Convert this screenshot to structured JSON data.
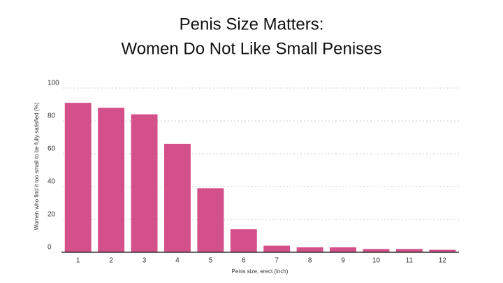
{
  "chart_data": {
    "type": "bar",
    "title": [
      "Penis Size Matters:",
      "Women Do Not Like Small Penises"
    ],
    "x_label": "Penis size, erect (inch)",
    "y_label": "Women who find it too small to be fully satisfied (%)",
    "categories": [
      "1",
      "2",
      "3",
      "4",
      "5",
      "6",
      "7",
      "8",
      "9",
      "10",
      "11",
      "12"
    ],
    "values": [
      91,
      88,
      84,
      66,
      39,
      14,
      4,
      3,
      3,
      2,
      2,
      1.5
    ],
    "color": "#d4508a",
    "ylim": [
      0,
      100
    ],
    "yticks": [
      0,
      20,
      40,
      60,
      80,
      100
    ],
    "grid": true
  }
}
